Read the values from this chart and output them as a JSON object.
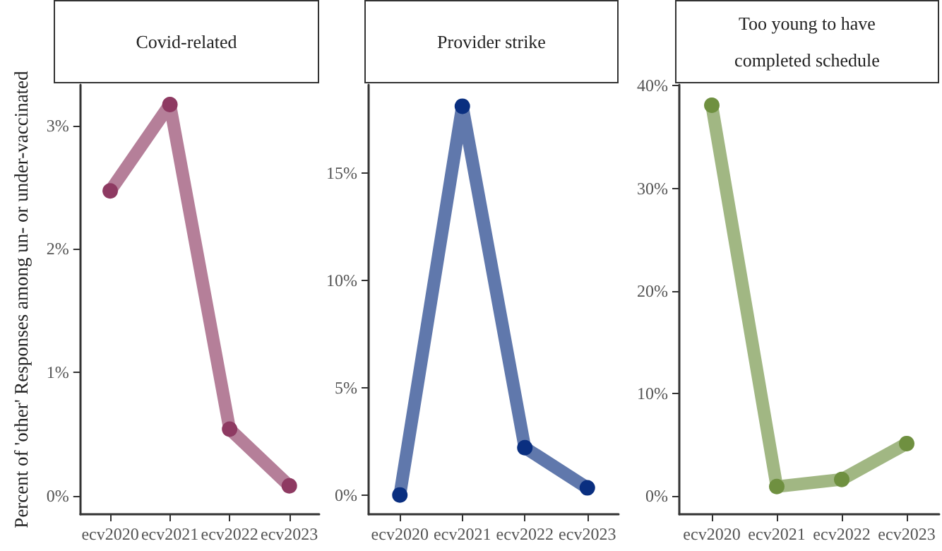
{
  "chart_data": [
    {
      "type": "line",
      "title": "Covid-related",
      "ylabel": "Percent of 'other' Responses among un- or under-vaccinated",
      "categories": [
        "ecv2020",
        "ecv2021",
        "ecv2022",
        "ecv2023"
      ],
      "marker": "circle",
      "line_style": "solid",
      "grid": false,
      "series": [
        {
          "color": "#8e3a62",
          "values": [
            2.47,
            3.17,
            0.54,
            0.08
          ]
        }
      ],
      "ylim": [
        -0.15,
        3.33
      ],
      "yticks": [
        {
          "value": 0,
          "label": "0%"
        },
        {
          "value": 1,
          "label": "1%"
        },
        {
          "value": 2,
          "label": "2%"
        },
        {
          "value": 3,
          "label": "3%"
        }
      ]
    },
    {
      "type": "line",
      "title": "Provider strike",
      "categories": [
        "ecv2020",
        "ecv2021",
        "ecv2022",
        "ecv2023"
      ],
      "marker": "circle",
      "line_style": "solid",
      "grid": false,
      "series": [
        {
          "color": "#0a2f80",
          "values": [
            0,
            18.1,
            2.2,
            0.33
          ]
        }
      ],
      "ylim": [
        -0.9,
        19.1
      ],
      "yticks": [
        {
          "value": 0,
          "label": "0%"
        },
        {
          "value": 5,
          "label": "5%"
        },
        {
          "value": 10,
          "label": "10%"
        },
        {
          "value": 15,
          "label": "15%"
        }
      ]
    },
    {
      "type": "line",
      "title": "Too young to have\n\ncompleted schedule",
      "categories": [
        "ecv2020",
        "ecv2021",
        "ecv2022",
        "ecv2023"
      ],
      "marker": "circle",
      "line_style": "solid",
      "grid": false,
      "series": [
        {
          "color": "#6f9040",
          "values": [
            38.1,
            0.9,
            1.6,
            5.1
          ]
        }
      ],
      "ylim": [
        -1.8,
        40.1
      ],
      "yticks": [
        {
          "value": 0,
          "label": "0%"
        },
        {
          "value": 10,
          "label": "10%"
        },
        {
          "value": 20,
          "label": "20%"
        },
        {
          "value": 30,
          "label": "30%"
        },
        {
          "value": 40,
          "label": "40%"
        }
      ]
    }
  ]
}
